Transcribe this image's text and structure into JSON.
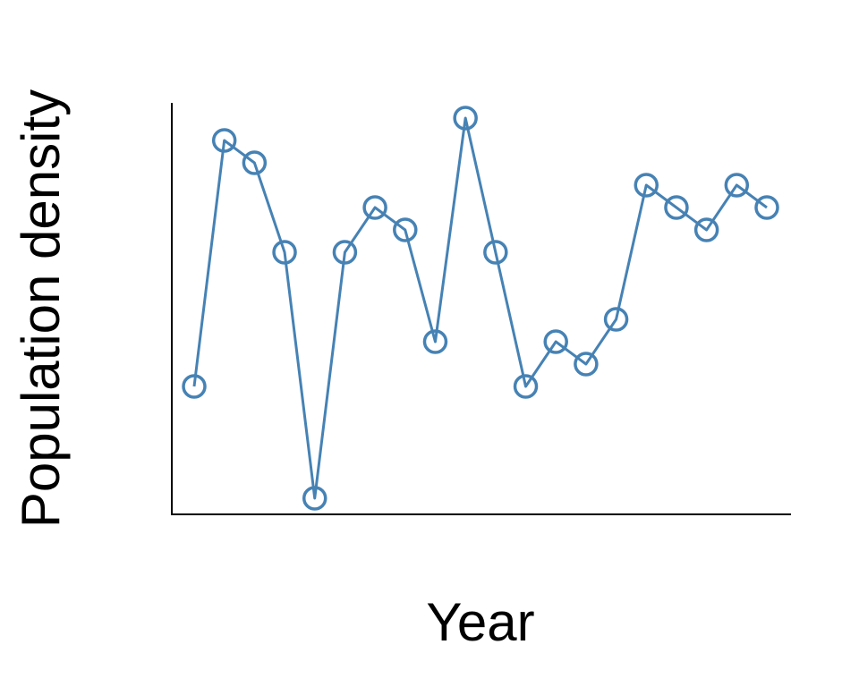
{
  "chart_data": {
    "type": "line",
    "xlabel": "Year",
    "ylabel": "Population density",
    "categories": [
      null,
      null,
      null,
      null,
      null,
      null,
      null,
      null,
      null,
      null,
      null,
      null,
      null,
      null,
      null,
      null,
      null,
      null,
      null,
      null
    ],
    "values": [
      6,
      17,
      16,
      12,
      1,
      12,
      14,
      13,
      8,
      18,
      12,
      6,
      8,
      7,
      9,
      15,
      14,
      13,
      15,
      14
    ],
    "color": "#4682b4",
    "ylim": [
      0.28,
      18.68
    ],
    "grid": false
  }
}
